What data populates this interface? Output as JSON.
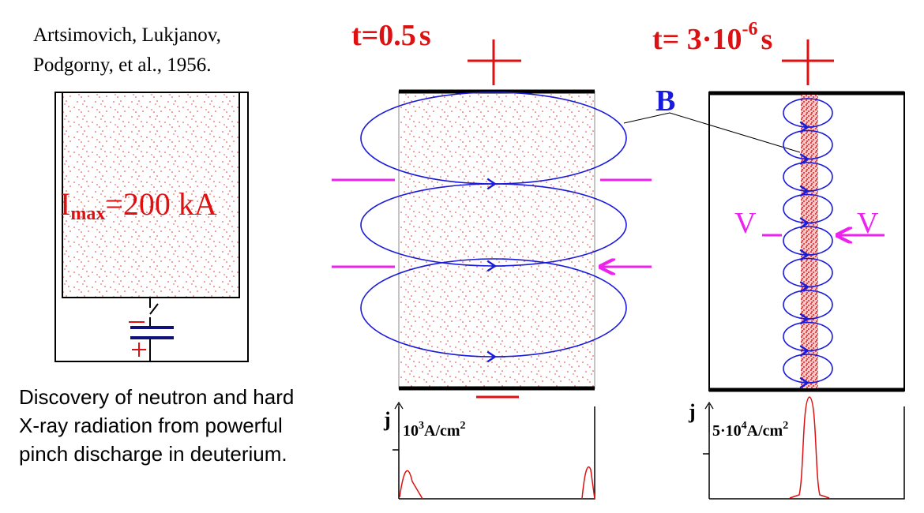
{
  "citation": [
    "Artsimovich, Lukjanov,",
    "Podgorny, et al., 1956."
  ],
  "current": {
    "symbol": "I",
    "subscript": "max",
    "value": "=200 kA"
  },
  "caption": [
    "Discovery of neutron and hard",
    "X-ray radiation from powerful",
    "pinch discharge in deuterium."
  ],
  "stage_early": {
    "time": "t=0.5",
    "unit": "s",
    "axis": "j",
    "scale_base": "10",
    "scale_exp": "3",
    "scale_unit": "A/cm",
    "scale_unit_exp": "2"
  },
  "stage_pinch": {
    "time": "t= 3·10",
    "time_exp": "-6",
    "unit": "s",
    "axis": "j",
    "scale_base": "5·10",
    "scale_exp": "4",
    "scale_unit": "A/cm",
    "scale_unit_exp": "2"
  },
  "field_label": "B",
  "velocity_labels": [
    "V",
    "V"
  ]
}
